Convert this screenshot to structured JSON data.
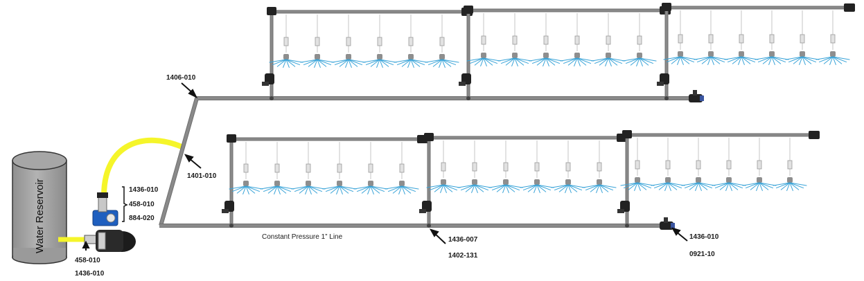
{
  "reservoir": {
    "label": "Water Reservoir"
  },
  "part_labels": {
    "riser_top": "1406-010",
    "hose": "1401-010",
    "pump_a": "1436-010",
    "pump_b": "458-010",
    "pump_c": "884-020",
    "inlet_a": "458-010",
    "inlet_b": "1436-010",
    "valve_a": "1436-010",
    "valve_b": "0921-10",
    "tee_a": "1436-007",
    "tee_b": "1402-131"
  },
  "line_label": "Constant Pressure 1” Line",
  "colors": {
    "pipe": "#8a8a8a",
    "pipe_edge": "#6f6f6f",
    "hose": "#f5f52a",
    "spray": "#38a3d8",
    "pump_blue": "#1f5fbf",
    "fitting": "#222222"
  }
}
